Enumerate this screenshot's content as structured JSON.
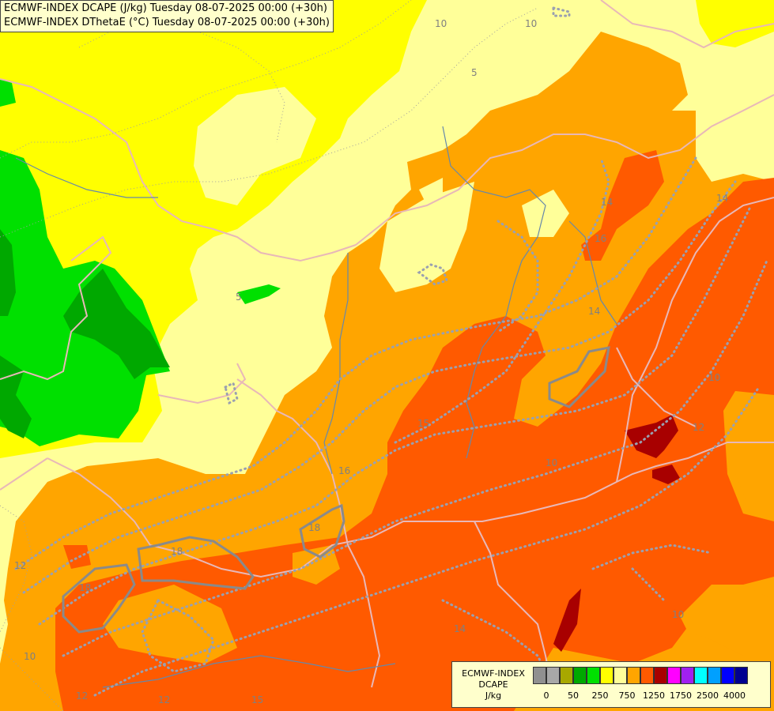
{
  "title": {
    "line1": "ECMWF-INDEX DCAPE (J/kg) Tuesday 08-07-2025 00:00 (+30h)",
    "line2": "ECMWF-INDEX DThetaE (°C) Tuesday 08-07-2025 00:00 (+30h)"
  },
  "legend": {
    "model": "ECMWF-INDEX",
    "variable": "DCAPE",
    "unit": "J/kg",
    "colors": [
      "#909090",
      "#a8a8a8",
      "#a8a800",
      "#00a800",
      "#00e000",
      "#ffff00",
      "#ffff99",
      "#ffa500",
      "#ff5a00",
      "#a80000",
      "#ff00ff",
      "#a020f0",
      "#00ffff",
      "#00a0ff",
      "#0000ff",
      "#000090"
    ],
    "ticks": [
      {
        "label": "0",
        "at": 1
      },
      {
        "label": "50",
        "at": 3
      },
      {
        "label": "250",
        "at": 5
      },
      {
        "label": "750",
        "at": 7
      },
      {
        "label": "1250",
        "at": 9
      },
      {
        "label": "1750",
        "at": 11
      },
      {
        "label": "2500",
        "at": 13
      },
      {
        "label": "4000",
        "at": 15
      }
    ]
  },
  "contour_labels": [
    "10",
    "10",
    "5",
    "5",
    "14",
    "16",
    "14",
    "15",
    "10",
    "12",
    "16",
    "18",
    "18",
    "18",
    "12",
    "10",
    "14",
    "12",
    "15",
    "10",
    "14",
    "12",
    "10"
  ]
}
